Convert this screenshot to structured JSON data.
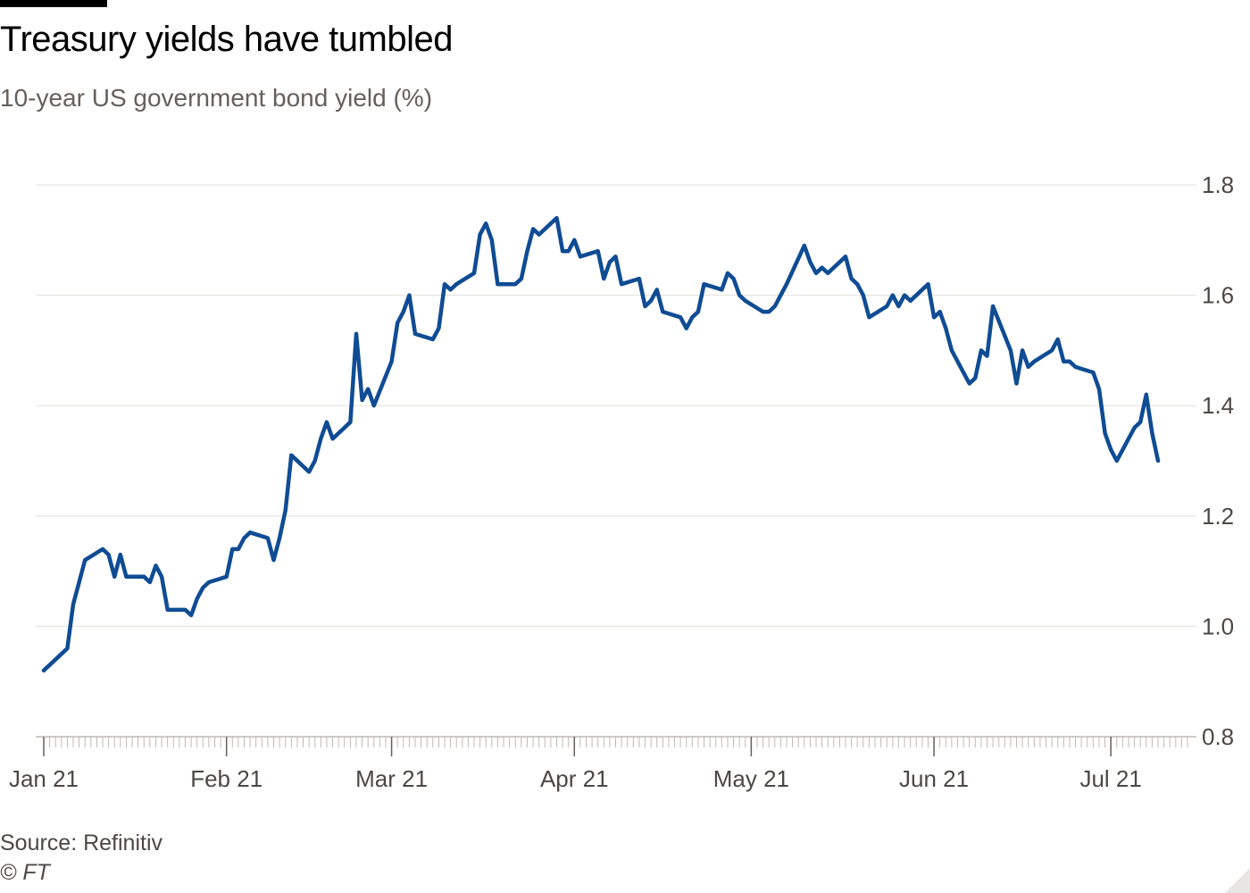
{
  "title": "Treasury yields have tumbled",
  "subtitle": "10-year US government bond yield (%)",
  "source": "Source: Refinitiv",
  "copyright": "© FT",
  "colors": {
    "line": "#0f4c94",
    "grid": "#e2dfdc",
    "axis": "#bfbab6",
    "text": "#4d4845",
    "background": "#ffffff"
  },
  "chart_data": {
    "type": "line",
    "title": "Treasury yields have tumbled",
    "subtitle": "10-year US government bond yield (%)",
    "xlabel": "",
    "ylabel": "",
    "ylim": [
      0.8,
      1.8
    ],
    "yticks": [
      0.8,
      1.0,
      1.2,
      1.4,
      1.6,
      1.8
    ],
    "ytick_labels": [
      "0.8",
      "1.0",
      "1.2",
      "1.4",
      "1.6",
      "1.8"
    ],
    "y_axis_side": "right",
    "grid": true,
    "x_range": [
      "2021-01-01",
      "2021-07-14"
    ],
    "xticks": [
      {
        "date": "2021-01-01",
        "label": "Jan 21"
      },
      {
        "date": "2021-02-01",
        "label": "Feb 21"
      },
      {
        "date": "2021-03-01",
        "label": "Mar 21"
      },
      {
        "date": "2021-04-01",
        "label": "Apr 21"
      },
      {
        "date": "2021-05-01",
        "label": "May 21"
      },
      {
        "date": "2021-06-01",
        "label": "Jun 21"
      },
      {
        "date": "2021-07-01",
        "label": "Jul 21"
      }
    ],
    "series": [
      {
        "name": "10-year US government bond yield",
        "points": [
          [
            "2021-01-01",
            0.92
          ],
          [
            "2021-01-04",
            0.95
          ],
          [
            "2021-01-05",
            0.96
          ],
          [
            "2021-01-06",
            1.04
          ],
          [
            "2021-01-07",
            1.08
          ],
          [
            "2021-01-08",
            1.12
          ],
          [
            "2021-01-11",
            1.14
          ],
          [
            "2021-01-12",
            1.13
          ],
          [
            "2021-01-13",
            1.09
          ],
          [
            "2021-01-14",
            1.13
          ],
          [
            "2021-01-15",
            1.09
          ],
          [
            "2021-01-18",
            1.09
          ],
          [
            "2021-01-19",
            1.08
          ],
          [
            "2021-01-20",
            1.11
          ],
          [
            "2021-01-21",
            1.09
          ],
          [
            "2021-01-22",
            1.03
          ],
          [
            "2021-01-25",
            1.03
          ],
          [
            "2021-01-26",
            1.02
          ],
          [
            "2021-01-27",
            1.05
          ],
          [
            "2021-01-28",
            1.07
          ],
          [
            "2021-01-29",
            1.08
          ],
          [
            "2021-02-01",
            1.09
          ],
          [
            "2021-02-02",
            1.14
          ],
          [
            "2021-02-03",
            1.14
          ],
          [
            "2021-02-04",
            1.16
          ],
          [
            "2021-02-05",
            1.17
          ],
          [
            "2021-02-08",
            1.16
          ],
          [
            "2021-02-09",
            1.12
          ],
          [
            "2021-02-10",
            1.16
          ],
          [
            "2021-02-11",
            1.21
          ],
          [
            "2021-02-12",
            1.31
          ],
          [
            "2021-02-15",
            1.28
          ],
          [
            "2021-02-16",
            1.3
          ],
          [
            "2021-02-17",
            1.34
          ],
          [
            "2021-02-18",
            1.37
          ],
          [
            "2021-02-19",
            1.34
          ],
          [
            "2021-02-22",
            1.37
          ],
          [
            "2021-02-23",
            1.53
          ],
          [
            "2021-02-24",
            1.41
          ],
          [
            "2021-02-25",
            1.43
          ],
          [
            "2021-02-26",
            1.4
          ],
          [
            "2021-03-01",
            1.48
          ],
          [
            "2021-03-02",
            1.55
          ],
          [
            "2021-03-03",
            1.57
          ],
          [
            "2021-03-04",
            1.6
          ],
          [
            "2021-03-05",
            1.53
          ],
          [
            "2021-03-08",
            1.52
          ],
          [
            "2021-03-09",
            1.54
          ],
          [
            "2021-03-10",
            1.62
          ],
          [
            "2021-03-11",
            1.61
          ],
          [
            "2021-03-12",
            1.62
          ],
          [
            "2021-03-15",
            1.64
          ],
          [
            "2021-03-16",
            1.71
          ],
          [
            "2021-03-17",
            1.73
          ],
          [
            "2021-03-18",
            1.7
          ],
          [
            "2021-03-19",
            1.62
          ],
          [
            "2021-03-22",
            1.62
          ],
          [
            "2021-03-23",
            1.63
          ],
          [
            "2021-03-24",
            1.68
          ],
          [
            "2021-03-25",
            1.72
          ],
          [
            "2021-03-26",
            1.71
          ],
          [
            "2021-03-29",
            1.74
          ],
          [
            "2021-03-30",
            1.68
          ],
          [
            "2021-03-31",
            1.68
          ],
          [
            "2021-04-01",
            1.7
          ],
          [
            "2021-04-02",
            1.67
          ],
          [
            "2021-04-05",
            1.68
          ],
          [
            "2021-04-06",
            1.63
          ],
          [
            "2021-04-07",
            1.66
          ],
          [
            "2021-04-08",
            1.67
          ],
          [
            "2021-04-09",
            1.62
          ],
          [
            "2021-04-12",
            1.63
          ],
          [
            "2021-04-13",
            1.58
          ],
          [
            "2021-04-14",
            1.59
          ],
          [
            "2021-04-15",
            1.61
          ],
          [
            "2021-04-16",
            1.57
          ],
          [
            "2021-04-19",
            1.56
          ],
          [
            "2021-04-20",
            1.54
          ],
          [
            "2021-04-21",
            1.56
          ],
          [
            "2021-04-22",
            1.57
          ],
          [
            "2021-04-23",
            1.62
          ],
          [
            "2021-04-26",
            1.61
          ],
          [
            "2021-04-27",
            1.64
          ],
          [
            "2021-04-28",
            1.63
          ],
          [
            "2021-04-29",
            1.6
          ],
          [
            "2021-04-30",
            1.59
          ],
          [
            "2021-05-03",
            1.57
          ],
          [
            "2021-05-04",
            1.57
          ],
          [
            "2021-05-05",
            1.58
          ],
          [
            "2021-05-06",
            1.6
          ],
          [
            "2021-05-07",
            1.62
          ],
          [
            "2021-05-10",
            1.69
          ],
          [
            "2021-05-11",
            1.66
          ],
          [
            "2021-05-12",
            1.64
          ],
          [
            "2021-05-13",
            1.65
          ],
          [
            "2021-05-14",
            1.64
          ],
          [
            "2021-05-17",
            1.67
          ],
          [
            "2021-05-18",
            1.63
          ],
          [
            "2021-05-19",
            1.62
          ],
          [
            "2021-05-20",
            1.6
          ],
          [
            "2021-05-21",
            1.56
          ],
          [
            "2021-05-24",
            1.58
          ],
          [
            "2021-05-25",
            1.6
          ],
          [
            "2021-05-26",
            1.58
          ],
          [
            "2021-05-27",
            1.6
          ],
          [
            "2021-05-28",
            1.59
          ],
          [
            "2021-05-31",
            1.62
          ],
          [
            "2021-06-01",
            1.56
          ],
          [
            "2021-06-02",
            1.57
          ],
          [
            "2021-06-03",
            1.54
          ],
          [
            "2021-06-04",
            1.5
          ],
          [
            "2021-06-07",
            1.44
          ],
          [
            "2021-06-08",
            1.45
          ],
          [
            "2021-06-09",
            1.5
          ],
          [
            "2021-06-10",
            1.49
          ],
          [
            "2021-06-11",
            1.58
          ],
          [
            "2021-06-14",
            1.5
          ],
          [
            "2021-06-15",
            1.44
          ],
          [
            "2021-06-16",
            1.5
          ],
          [
            "2021-06-17",
            1.47
          ],
          [
            "2021-06-18",
            1.48
          ],
          [
            "2021-06-21",
            1.5
          ],
          [
            "2021-06-22",
            1.52
          ],
          [
            "2021-06-23",
            1.48
          ],
          [
            "2021-06-24",
            1.48
          ],
          [
            "2021-06-25",
            1.47
          ],
          [
            "2021-06-28",
            1.46
          ],
          [
            "2021-06-29",
            1.43
          ],
          [
            "2021-06-30",
            1.35
          ],
          [
            "2021-07-01",
            1.32
          ],
          [
            "2021-07-02",
            1.3
          ],
          [
            "2021-07-05",
            1.36
          ],
          [
            "2021-07-06",
            1.37
          ],
          [
            "2021-07-07",
            1.42
          ],
          [
            "2021-07-08",
            1.35
          ],
          [
            "2021-07-09",
            1.3
          ]
        ]
      }
    ]
  }
}
